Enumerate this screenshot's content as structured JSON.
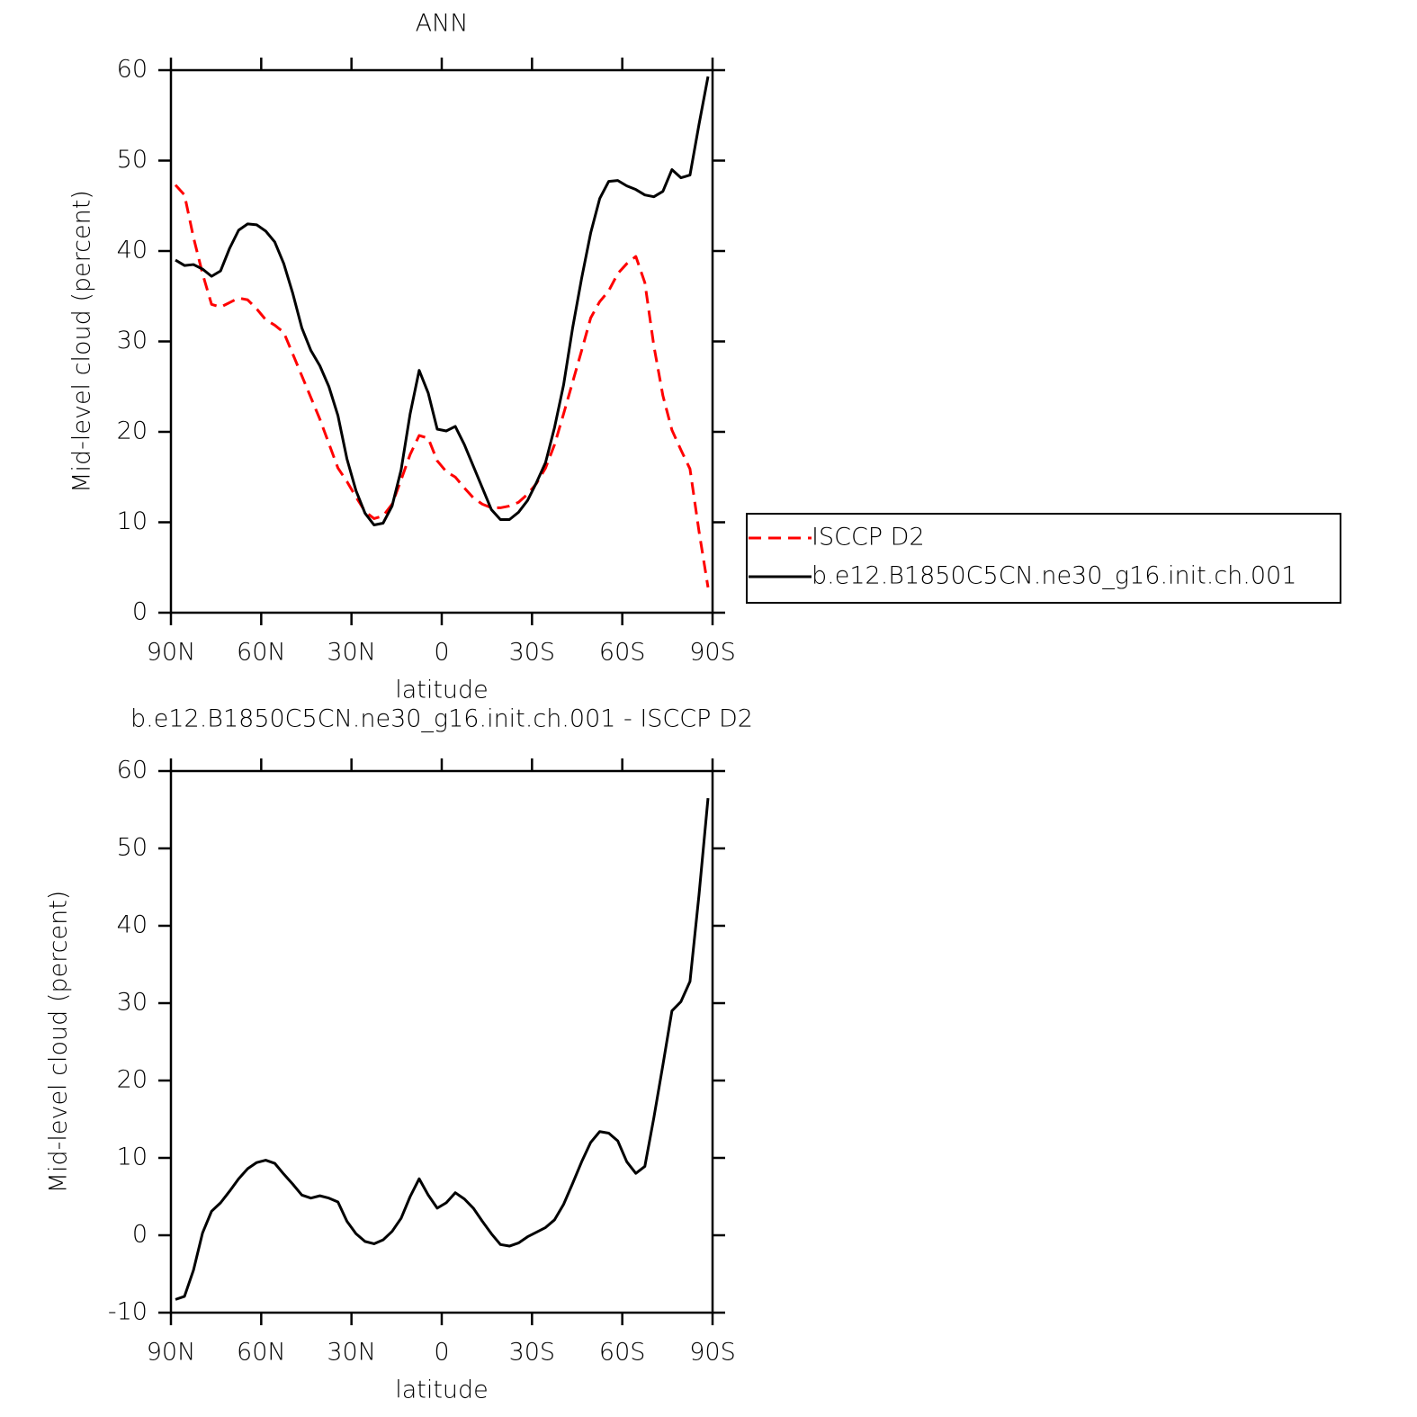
{
  "chart_data": [
    {
      "type": "line",
      "title": "ANN",
      "xlabel": "latitude",
      "ylabel": "Mid-level cloud (percent)",
      "x": [
        88.5,
        85.5,
        82.5,
        79.5,
        76.5,
        73.5,
        70.5,
        67.5,
        64.5,
        61.5,
        58.5,
        55.5,
        52.5,
        49.5,
        46.5,
        43.5,
        40.5,
        37.5,
        34.5,
        31.5,
        28.5,
        25.5,
        22.5,
        19.5,
        16.5,
        13.5,
        10.5,
        7.5,
        4.5,
        1.5,
        -1.5,
        -4.5,
        -7.5,
        -10.5,
        -13.5,
        -16.5,
        -19.5,
        -22.5,
        -25.5,
        -28.5,
        -31.5,
        -34.5,
        -37.5,
        -40.5,
        -43.5,
        -46.5,
        -49.5,
        -52.5,
        -55.5,
        -58.5,
        -61.5,
        -64.5,
        -67.5,
        -70.5,
        -73.5,
        -76.5,
        -79.5,
        -82.5,
        -85.5,
        -88.5
      ],
      "series": [
        {
          "name": "ISCCP D2",
          "color": "#ff0000",
          "line_style": "dashed",
          "values": [
            47.3,
            46.2,
            41.5,
            37.5,
            34.1,
            33.8,
            34.3,
            34.8,
            34.6,
            33.6,
            32.4,
            31.8,
            31,
            28.6,
            26.2,
            23.8,
            21.4,
            18.7,
            16,
            14.5,
            12.8,
            11.2,
            10.4,
            10.7,
            12,
            14.7,
            17.5,
            19.6,
            19.3,
            16.8,
            15.6,
            15,
            13.8,
            12.7,
            12,
            11.6,
            11.6,
            11.8,
            12.2,
            13.1,
            14.3,
            16,
            18.6,
            22,
            25.5,
            29,
            32.6,
            34.4,
            35.6,
            37.5,
            38.6,
            39.4,
            36.5,
            29.5,
            24,
            20.2,
            18,
            15.9,
            9,
            2.8
          ]
        },
        {
          "name": "b.e12.B1850C5CN.ne30_g16.init.ch.001",
          "color": "#000000",
          "line_style": "solid",
          "values": [
            39,
            38.4,
            38.5,
            38,
            37.2,
            37.8,
            40.3,
            42.3,
            43,
            42.9,
            42.2,
            41,
            38.6,
            35.3,
            31.5,
            29,
            27.3,
            25,
            21.8,
            17,
            13.5,
            11,
            9.7,
            9.9,
            11.8,
            15.8,
            22,
            26.8,
            24.3,
            20.3,
            20.1,
            20.6,
            18.6,
            16.2,
            13.8,
            11.4,
            10.3,
            10.3,
            11.1,
            12.4,
            14.4,
            16.6,
            20.5,
            25.2,
            31.5,
            37,
            42,
            45.8,
            47.7,
            47.8,
            47.2,
            46.8,
            46.2,
            46,
            46.6,
            49,
            48.1,
            48.4,
            54,
            59.3
          ]
        }
      ],
      "xlim": [
        90,
        -90
      ],
      "xticks": [
        {
          "value": 90,
          "label": "90N"
        },
        {
          "value": 60,
          "label": "60N"
        },
        {
          "value": 30,
          "label": "30N"
        },
        0,
        {
          "value": -30,
          "label": "30S"
        },
        {
          "value": -60,
          "label": "60S"
        },
        {
          "value": -90,
          "label": "90S"
        }
      ],
      "ylim": [
        0,
        60
      ],
      "yticks": [
        0,
        10,
        20,
        30,
        40,
        50,
        60
      ],
      "legend": "right"
    },
    {
      "type": "line",
      "title": "b.e12.B1850C5CN.ne30_g16.init.ch.001 - ISCCP D2",
      "xlabel": "latitude",
      "ylabel": "Mid-level cloud (percent)",
      "x": [
        88.5,
        85.5,
        82.5,
        79.5,
        76.5,
        73.5,
        70.5,
        67.5,
        64.5,
        61.5,
        58.5,
        55.5,
        52.5,
        49.5,
        46.5,
        43.5,
        40.5,
        37.5,
        34.5,
        31.5,
        28.5,
        25.5,
        22.5,
        19.5,
        16.5,
        13.5,
        10.5,
        7.5,
        4.5,
        1.5,
        -1.5,
        -4.5,
        -7.5,
        -10.5,
        -13.5,
        -16.5,
        -19.5,
        -22.5,
        -25.5,
        -28.5,
        -31.5,
        -34.5,
        -37.5,
        -40.5,
        -43.5,
        -46.5,
        -49.5,
        -52.5,
        -55.5,
        -58.5,
        -61.5,
        -64.5,
        -67.5,
        -70.5,
        -73.5,
        -76.5,
        -79.5,
        -82.5,
        -85.5,
        -88.5
      ],
      "series": [
        {
          "color": "#000000",
          "line_style": "solid",
          "values": [
            -8.3,
            -7.9,
            -4.5,
            0.3,
            3.1,
            4.2,
            5.7,
            7.3,
            8.6,
            9.4,
            9.7,
            9.3,
            7.9,
            6.6,
            5.2,
            4.8,
            5.1,
            4.8,
            4.3,
            1.8,
            0.2,
            -0.8,
            -1.1,
            -0.6,
            0.5,
            2.2,
            5,
            7.3,
            5.2,
            3.5,
            4.2,
            5.5,
            4.7,
            3.5,
            1.8,
            0.2,
            -1.2,
            -1.4,
            -1,
            -0.2,
            0.4,
            1,
            2,
            4,
            6.7,
            9.5,
            12,
            13.4,
            13.2,
            12.2,
            9.5,
            8,
            8.9,
            15.2,
            22,
            29,
            30.2,
            32.8,
            44,
            56.5
          ]
        }
      ],
      "xlim": [
        90,
        -90
      ],
      "xticks": [
        {
          "value": 90,
          "label": "90N"
        },
        {
          "value": 60,
          "label": "60N"
        },
        {
          "value": 30,
          "label": "30N"
        },
        0,
        {
          "value": -30,
          "label": "30S"
        },
        {
          "value": -60,
          "label": "60S"
        },
        {
          "value": -90,
          "label": "90S"
        }
      ],
      "ylim": [
        -10,
        60
      ],
      "yticks": [
        -10,
        0,
        10,
        20,
        30,
        40,
        50,
        60
      ]
    }
  ]
}
